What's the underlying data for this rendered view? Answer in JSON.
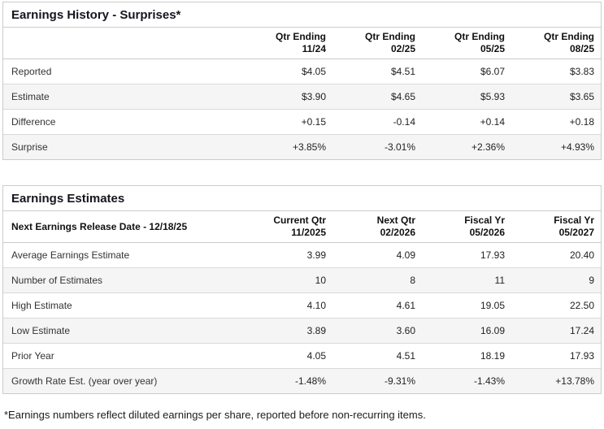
{
  "colors": {
    "positive": "#2E8B57",
    "negative": "#B22222",
    "border": "#cccccc",
    "alt_row_bg": "#f5f5f5"
  },
  "history": {
    "title": "Earnings History - Surprises*",
    "header_label": "",
    "columns": [
      {
        "line1": "Qtr Ending",
        "line2": "11/24"
      },
      {
        "line1": "Qtr Ending",
        "line2": "02/25"
      },
      {
        "line1": "Qtr Ending",
        "line2": "05/25"
      },
      {
        "line1": "Qtr Ending",
        "line2": "08/25"
      }
    ],
    "rows": [
      {
        "label": "Reported",
        "values": [
          "$4.05",
          "$4.51",
          "$6.07",
          "$3.83"
        ],
        "signed": false
      },
      {
        "label": "Estimate",
        "values": [
          "$3.90",
          "$4.65",
          "$5.93",
          "$3.65"
        ],
        "signed": false
      },
      {
        "label": "Difference",
        "values": [
          "+0.15",
          "-0.14",
          "+0.14",
          "+0.18"
        ],
        "signed": true
      },
      {
        "label": "Surprise",
        "values": [
          "+3.85%",
          "-3.01%",
          "+2.36%",
          "+4.93%"
        ],
        "signed": true
      }
    ]
  },
  "estimates": {
    "title": "Earnings Estimates",
    "header_label": "Next Earnings Release Date - 12/18/25",
    "columns": [
      {
        "line1": "Current Qtr",
        "line2": "11/2025"
      },
      {
        "line1": "Next Qtr",
        "line2": "02/2026"
      },
      {
        "line1": "Fiscal Yr",
        "line2": "05/2026"
      },
      {
        "line1": "Fiscal Yr",
        "line2": "05/2027"
      }
    ],
    "rows": [
      {
        "label": "Average Earnings Estimate",
        "values": [
          "3.99",
          "4.09",
          "17.93",
          "20.40"
        ],
        "signed": false
      },
      {
        "label": "Number of Estimates",
        "values": [
          "10",
          "8",
          "11",
          "9"
        ],
        "signed": false
      },
      {
        "label": "High Estimate",
        "values": [
          "4.10",
          "4.61",
          "19.05",
          "22.50"
        ],
        "signed": false
      },
      {
        "label": "Low Estimate",
        "values": [
          "3.89",
          "3.60",
          "16.09",
          "17.24"
        ],
        "signed": false
      },
      {
        "label": "Prior Year",
        "values": [
          "4.05",
          "4.51",
          "18.19",
          "17.93"
        ],
        "signed": false
      },
      {
        "label": "Growth Rate Est. (year over year)",
        "values": [
          "-1.48%",
          "-9.31%",
          "-1.43%",
          "+13.78%"
        ],
        "signed": true
      }
    ]
  },
  "footnote": "*Earnings numbers reflect diluted earnings per share, reported before non-recurring items."
}
